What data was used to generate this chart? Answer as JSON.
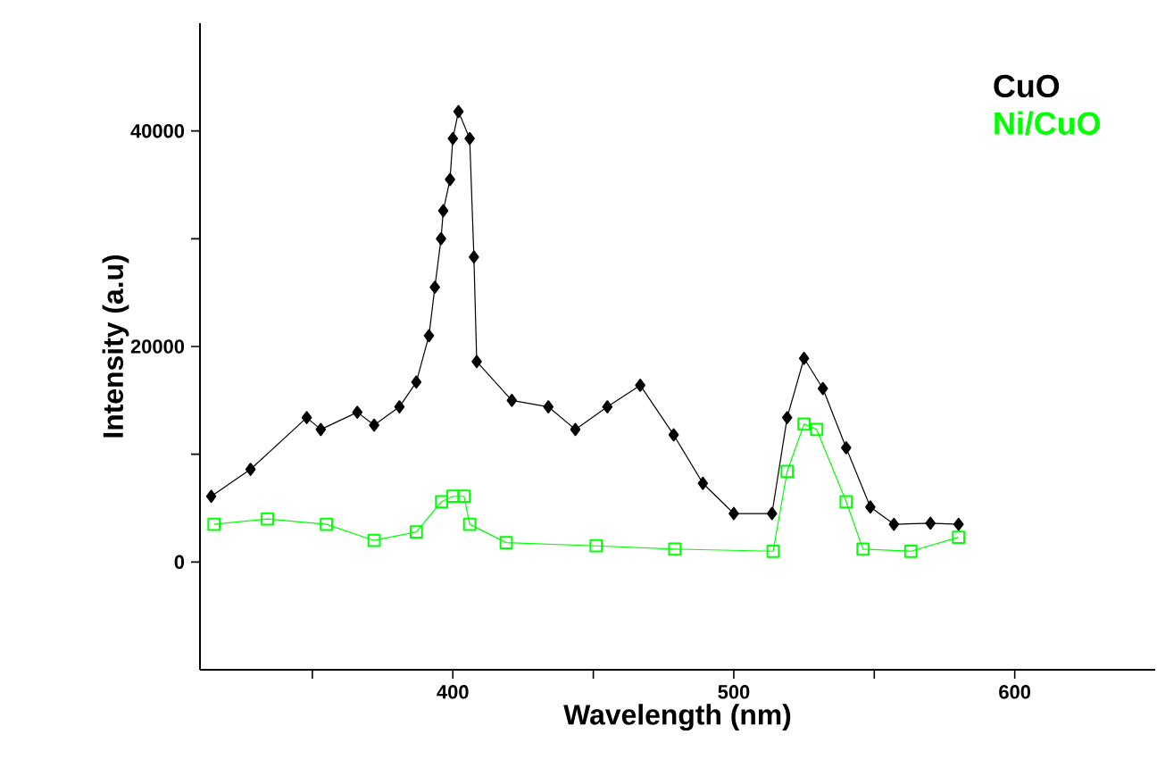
{
  "chart_data": {
    "type": "line",
    "xlabel": "Wavelength (nm)",
    "ylabel": "Intensity (a.u)",
    "xlim": [
      310,
      650
    ],
    "ylim": [
      -10000,
      50000
    ],
    "xticks": [
      {
        "value": 350,
        "label": null
      },
      400,
      {
        "value": 450,
        "label": null
      },
      500,
      {
        "value": 550,
        "label": null
      },
      600
    ],
    "yticks": [
      0,
      {
        "value": 10000,
        "label": null
      },
      20000,
      {
        "value": 30000,
        "label": null
      },
      40000
    ],
    "legend": "top right",
    "grid": false,
    "series": [
      {
        "name": "CuO",
        "color": "#000000",
        "marker": "diamond",
        "x": [
          314,
          328,
          348,
          353,
          366,
          372,
          381,
          387,
          391.5,
          393.6,
          395.8,
          396.6,
          399,
          400,
          402,
          406,
          407.5,
          408.5,
          421,
          434,
          443.6,
          455,
          466.7,
          478.6,
          489,
          500,
          513.6,
          519,
          525,
          531.7,
          540,
          548.6,
          557,
          570,
          580
        ],
        "values": [
          6100,
          8600,
          13400,
          12300,
          13900,
          12700,
          14400,
          16700,
          21000,
          25500,
          30000,
          32600,
          35500,
          39300,
          41800,
          39300,
          28300,
          18600,
          15000,
          14400,
          12300,
          14400,
          16400,
          11800,
          7300,
          4500,
          4500,
          13400,
          18900,
          16100,
          10600,
          5100,
          3500,
          3600,
          3500
        ]
      },
      {
        "name": "Ni/CuO",
        "color": "#00ff00",
        "marker": "square",
        "x": [
          315,
          334,
          355,
          372,
          387,
          396,
          400,
          404,
          406,
          419,
          451,
          479,
          514,
          519,
          525,
          529.5,
          540,
          546,
          563,
          580
        ],
        "values": [
          3500,
          4000,
          3500,
          2000,
          2800,
          5600,
          6100,
          6100,
          3500,
          1800,
          1500,
          1200,
          1000,
          8400,
          12800,
          12300,
          5600,
          1200,
          1000,
          2300
        ]
      }
    ]
  }
}
